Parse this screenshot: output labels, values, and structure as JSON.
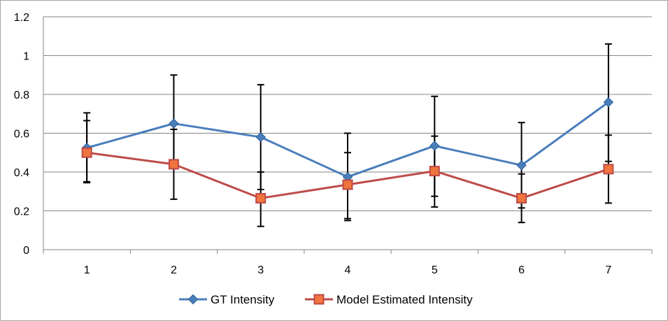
{
  "chart_data": {
    "type": "line",
    "title": "",
    "xlabel": "",
    "ylabel": "",
    "categories": [
      "1",
      "2",
      "3",
      "4",
      "5",
      "6",
      "7"
    ],
    "ylim": [
      0,
      1.2
    ],
    "yticks": [
      "0",
      "0.2",
      "0.4",
      "0.6",
      "0.8",
      "1",
      "1.2"
    ],
    "grid": true,
    "legend_position": "bottom",
    "series": [
      {
        "name": "GT Intensity",
        "color": "#4a7ebb",
        "marker": "diamond",
        "values": [
          0.525,
          0.65,
          0.58,
          0.375,
          0.535,
          0.435,
          0.76
        ],
        "error_low": [
          0.345,
          0.42,
          0.31,
          0.15,
          0.275,
          0.215,
          0.455
        ],
        "error_high": [
          0.705,
          0.9,
          0.85,
          0.6,
          0.79,
          0.655,
          1.06
        ]
      },
      {
        "name": "Model Estimated Intensity",
        "color": "#be4b48",
        "marker": "square",
        "values": [
          0.5,
          0.44,
          0.265,
          0.335,
          0.405,
          0.265,
          0.415
        ],
        "error_low": [
          0.35,
          0.26,
          0.12,
          0.16,
          0.22,
          0.14,
          0.24
        ],
        "error_high": [
          0.665,
          0.62,
          0.4,
          0.5,
          0.585,
          0.39,
          0.59
        ]
      }
    ]
  }
}
